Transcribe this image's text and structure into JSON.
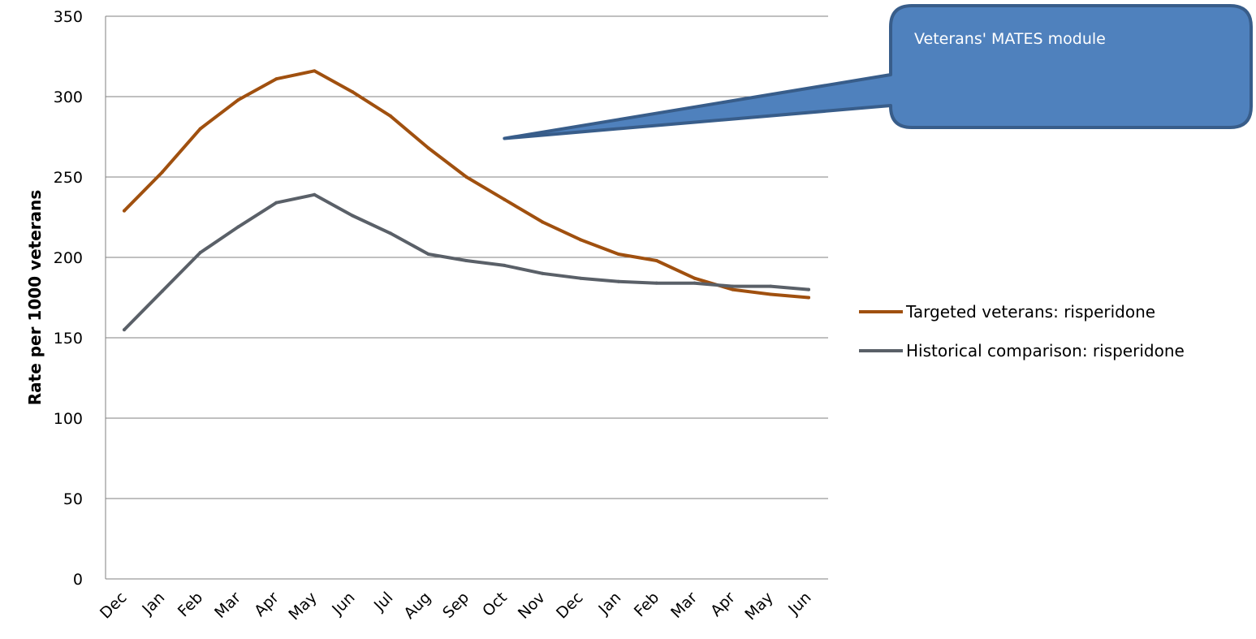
{
  "chart_data": {
    "type": "line",
    "categories": [
      "Dec",
      "Jan",
      "Feb",
      "Mar",
      "Apr",
      "May",
      "Jun",
      "Jul",
      "Aug",
      "Sep",
      "Oct",
      "Nov",
      "Dec",
      "Jan",
      "Feb",
      "Mar",
      "Apr",
      "May",
      "Jun"
    ],
    "series": [
      {
        "name": "Targeted veterans: risperidone",
        "color": "#a0500f",
        "values": [
          229,
          253,
          280,
          298,
          311,
          316,
          303,
          288,
          268,
          250,
          236,
          222,
          211,
          202,
          198,
          187,
          180,
          177,
          175
        ]
      },
      {
        "name": "Historical comparison: risperidone",
        "color": "#5a6068",
        "values": [
          155,
          179,
          203,
          219,
          234,
          239,
          226,
          215,
          202,
          198,
          195,
          190,
          187,
          185,
          184,
          184,
          182,
          182,
          180
        ]
      }
    ],
    "ylabel": "Rate per 1000 veterans",
    "xlabel": "",
    "ylim": [
      0,
      350
    ],
    "yticks": [
      0,
      50,
      100,
      150,
      200,
      250,
      300,
      350
    ],
    "grid": true,
    "legend_position": "right",
    "annotation": {
      "text": "Veterans' MATES module",
      "points_to_category_index": 10,
      "points_to_value": 274,
      "fill": "#4f81bd",
      "border": "#385d8a"
    }
  }
}
